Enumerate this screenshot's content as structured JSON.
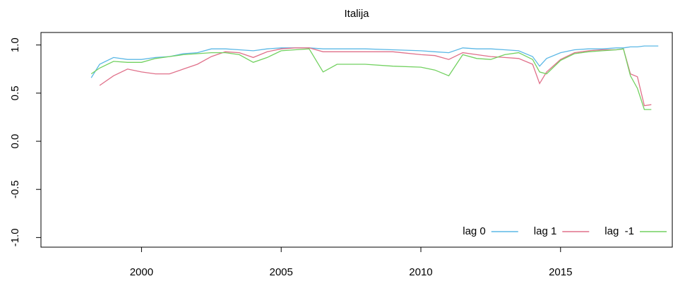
{
  "chart_data": {
    "type": "line",
    "title": "Italija",
    "x": [
      1998.2,
      1998.5,
      1999,
      1999.5,
      2000,
      2000.5,
      2001,
      2001.5,
      2002,
      2002.5,
      2003,
      2003.5,
      2004,
      2004.5,
      2005,
      2005.5,
      2006,
      2006.5,
      2007,
      2008,
      2009,
      2010,
      2010.5,
      2011,
      2011.5,
      2012,
      2012.5,
      2013,
      2013.5,
      2014,
      2014.25,
      2014.5,
      2015,
      2015.5,
      2016,
      2016.5,
      2017,
      2017.25,
      2017.5,
      2017.75,
      2018,
      2018.25,
      2018.5
    ],
    "series": [
      {
        "name": "lag 0",
        "color": "#5cb8e6",
        "values": [
          0.66,
          0.8,
          0.87,
          0.85,
          0.85,
          0.87,
          0.88,
          0.91,
          0.92,
          0.96,
          0.96,
          0.95,
          0.94,
          0.96,
          0.97,
          0.97,
          0.97,
          0.96,
          0.96,
          0.96,
          0.95,
          0.94,
          0.93,
          0.92,
          0.97,
          0.96,
          0.96,
          0.95,
          0.94,
          0.88,
          0.78,
          0.86,
          0.92,
          0.95,
          0.96,
          0.96,
          0.97,
          0.97,
          0.98,
          0.98,
          0.99,
          0.99,
          0.99
        ]
      },
      {
        "name": "lag 1",
        "color": "#e0708a",
        "values": [
          null,
          0.58,
          0.68,
          0.75,
          0.72,
          0.7,
          0.7,
          0.75,
          0.8,
          0.88,
          0.93,
          0.92,
          0.87,
          0.93,
          0.96,
          0.97,
          0.97,
          0.93,
          0.93,
          0.93,
          0.93,
          0.9,
          0.89,
          0.85,
          0.92,
          0.9,
          0.88,
          0.87,
          0.86,
          0.8,
          0.6,
          0.72,
          0.85,
          0.92,
          0.94,
          0.95,
          0.95,
          0.96,
          0.7,
          0.67,
          0.37,
          0.38,
          null
        ]
      },
      {
        "name": "lag  -1",
        "color": "#72d160",
        "values": [
          0.7,
          0.76,
          0.83,
          0.82,
          0.82,
          0.86,
          0.88,
          0.9,
          0.91,
          0.92,
          0.92,
          0.9,
          0.82,
          0.87,
          0.94,
          0.95,
          0.96,
          0.72,
          0.8,
          0.8,
          0.78,
          0.77,
          0.74,
          0.68,
          0.9,
          0.86,
          0.85,
          0.9,
          0.92,
          0.85,
          0.72,
          0.7,
          0.84,
          0.91,
          0.93,
          0.94,
          0.95,
          0.96,
          0.68,
          0.55,
          0.33,
          0.33,
          null
        ]
      }
    ],
    "xlim": [
      1996.4,
      2019.0
    ],
    "xticks": [
      2000,
      2005,
      2010,
      2015
    ],
    "ylim": [
      -1.1,
      1.13
    ],
    "yticks": [
      {
        "value": -1,
        "label": "-1.0"
      },
      {
        "value": -0.5,
        "label": "-0.5"
      },
      {
        "value": 0,
        "label": "0.0"
      },
      {
        "value": 0.5,
        "label": "0.5"
      },
      {
        "value": 1,
        "label": "1.0"
      }
    ],
    "legend": "bottomright",
    "grid": false
  }
}
